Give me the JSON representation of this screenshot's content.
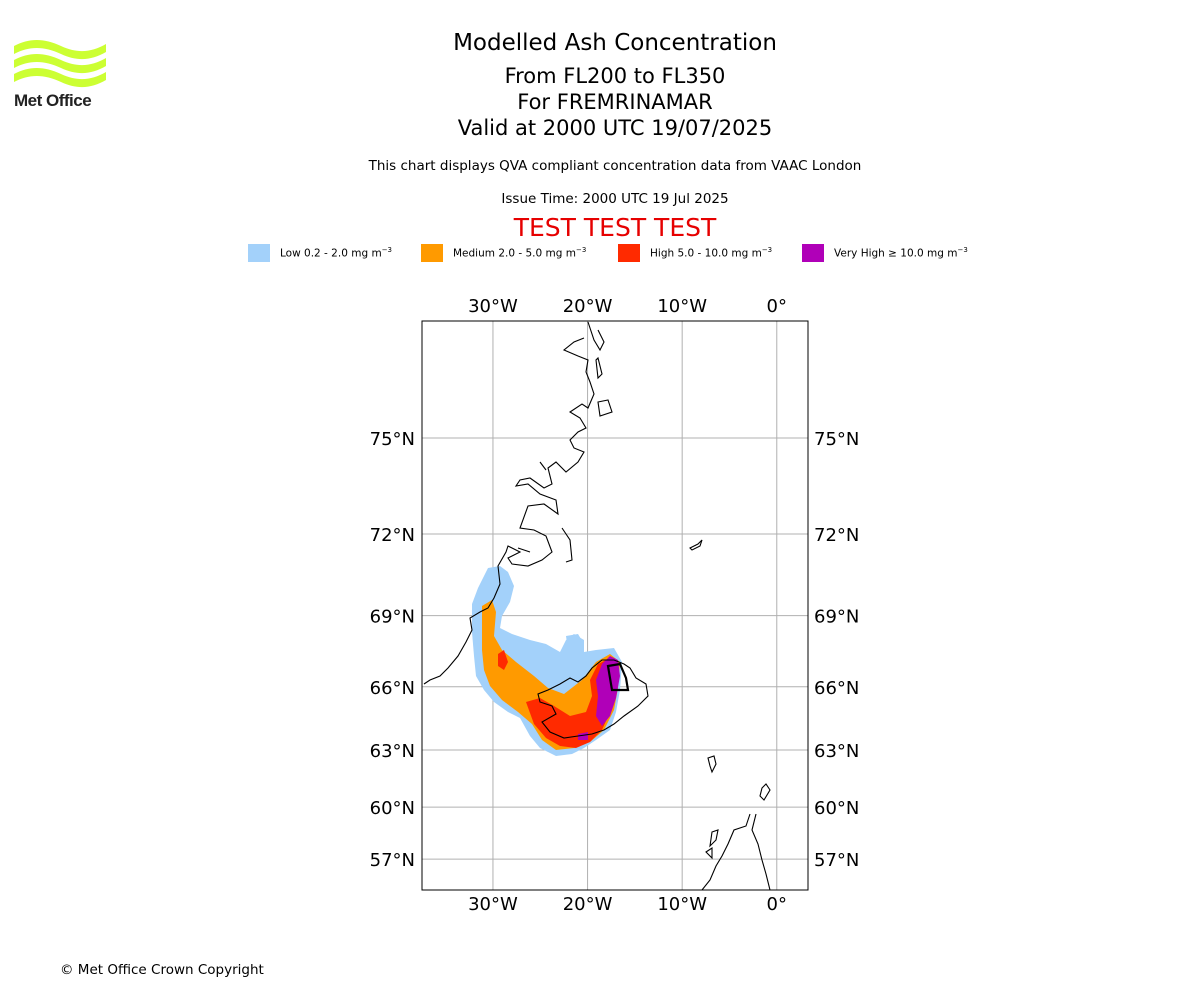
{
  "logo": {
    "name": "Met Office"
  },
  "header": {
    "title": "Modelled Ash Concentration",
    "levels": "From FL200 to FL350",
    "volcano": "For FREMRINAMAR",
    "valid": "Valid at 2000 UTC 19/07/2025",
    "note": "This chart displays QVA compliant concentration data from VAAC London",
    "issue": "Issue Time: 2000 UTC 19 Jul 2025",
    "test_banner": "TEST TEST TEST"
  },
  "legend": [
    {
      "label": "Low 0.2 - 2.0 mg m",
      "unit_exp": "−3",
      "color": "#a3d1fa"
    },
    {
      "label": "Medium 2.0 - 5.0 mg m",
      "unit_exp": "−3",
      "color": "#ff9a00"
    },
    {
      "label": "High 5.0 - 10.0 mg m",
      "unit_exp": "−3",
      "color": "#ff2a00"
    },
    {
      "label": "Very High  ≥  10.0 mg m",
      "unit_exp": "−3",
      "color": "#b000b8"
    }
  ],
  "map": {
    "lon_range": [
      -37.5,
      3.3
    ],
    "lat_range": [
      55.1,
      78.0
    ],
    "lon_ticks": [
      {
        "lon": -30,
        "label": "30°W"
      },
      {
        "lon": -20,
        "label": "20°W"
      },
      {
        "lon": -10,
        "label": "10°W"
      },
      {
        "lon": 0,
        "label": "0°"
      }
    ],
    "lat_ticks": [
      {
        "lat": 75,
        "label": "75°N"
      },
      {
        "lat": 72,
        "label": "72°N"
      },
      {
        "lat": 69,
        "label": "69°N"
      },
      {
        "lat": 66,
        "label": "66°N"
      },
      {
        "lat": 63,
        "label": "63°N"
      },
      {
        "lat": 60,
        "label": "60°N"
      },
      {
        "lat": 57,
        "label": "57°N"
      }
    ],
    "grid": true
  },
  "footer": {
    "copyright": "© Met Office Crown Copyright"
  }
}
